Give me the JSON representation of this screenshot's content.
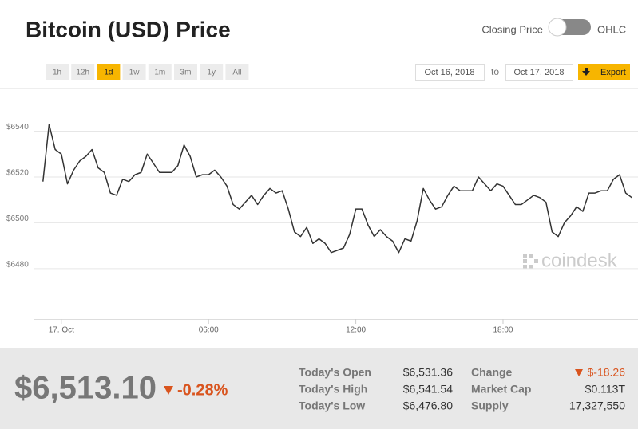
{
  "header": {
    "title": "Bitcoin (USD) Price",
    "toggle_left": "Closing Price",
    "toggle_right": "OHLC"
  },
  "controls": {
    "ranges": [
      "1h",
      "12h",
      "1d",
      "1w",
      "1m",
      "3m",
      "1y",
      "All"
    ],
    "selected_range": "1d",
    "date_from": "Oct 16, 2018",
    "to": "to",
    "date_to": "Oct 17, 2018",
    "export": "Export"
  },
  "chart_data": {
    "type": "line",
    "color": "#333333",
    "grid": true,
    "watermark": "coindesk",
    "x": [
      -0.75,
      -0.5,
      -0.25,
      0,
      0.25,
      0.5,
      0.75,
      1,
      1.25,
      1.5,
      1.75,
      2,
      2.25,
      2.5,
      2.75,
      3,
      3.25,
      3.5,
      3.75,
      4,
      4.25,
      4.5,
      4.75,
      5,
      5.25,
      5.5,
      5.75,
      6,
      6.25,
      6.5,
      6.75,
      7,
      7.25,
      7.5,
      7.75,
      8,
      8.25,
      8.5,
      8.75,
      9,
      9.25,
      9.5,
      9.75,
      10,
      10.25,
      10.5,
      10.75,
      11,
      11.25,
      11.5,
      11.75,
      12,
      12.25,
      12.5,
      12.75,
      13,
      13.25,
      13.5,
      13.75,
      14,
      14.25,
      14.5,
      14.75,
      15,
      15.25,
      15.5,
      15.75,
      16,
      16.25,
      16.5,
      16.75,
      17,
      17.25,
      17.5,
      17.75,
      18,
      18.25,
      18.5,
      18.75,
      19,
      19.25,
      19.5,
      19.75,
      20,
      20.25,
      20.5,
      20.75,
      21,
      21.25,
      21.5,
      21.75,
      22,
      22.25,
      22.5,
      22.75,
      23,
      23.25
    ],
    "values": [
      6518,
      6543,
      6532,
      6530,
      6517,
      6523,
      6527,
      6529,
      6532,
      6524,
      6522,
      6513,
      6512,
      6519,
      6518,
      6521,
      6522,
      6530,
      6526,
      6522,
      6522,
      6522,
      6525,
      6534,
      6529,
      6520,
      6521,
      6521,
      6523,
      6520,
      6516,
      6508,
      6506,
      6509,
      6512,
      6508,
      6512,
      6515,
      6513,
      6514,
      6506,
      6496,
      6494,
      6498,
      6491,
      6493,
      6491,
      6487,
      6488,
      6489,
      6495,
      6506,
      6506,
      6499,
      6494,
      6497,
      6494,
      6492,
      6487,
      6493,
      6492,
      6501,
      6515,
      6510,
      6506,
      6507,
      6512,
      6516,
      6514,
      6514,
      6514,
      6520,
      6517,
      6514,
      6517,
      6516,
      6512,
      6508,
      6508,
      6510,
      6512,
      6511,
      6509,
      6496,
      6494,
      6500,
      6503,
      6507,
      6505,
      6513,
      6513,
      6514,
      6514,
      6519,
      6521,
      6513,
      6511
    ],
    "xlim": [
      -2.5,
      23.5
    ],
    "xticks": [
      {
        "value": 0,
        "label": "17. Oct"
      },
      {
        "value": 6,
        "label": "06:00"
      },
      {
        "value": 12,
        "label": "12:00"
      },
      {
        "value": 18,
        "label": "18:00"
      }
    ],
    "ylim": [
      6458,
      6559
    ],
    "yticks": [
      {
        "value": 6480,
        "label": "$6480"
      },
      {
        "value": 6500,
        "label": "$6500"
      },
      {
        "value": 6520,
        "label": "$6520"
      },
      {
        "value": 6540,
        "label": "$6540"
      }
    ]
  },
  "summary": {
    "price": "$6,513.10",
    "change_percent": "-0.28%",
    "stats": [
      {
        "label": "Today's Open",
        "value": "$6,531.36"
      },
      {
        "label": "Today's High",
        "value": "$6,541.54"
      },
      {
        "label": "Today's Low",
        "value": "$6,476.80"
      },
      {
        "label": "Change",
        "value": "$-18.26"
      },
      {
        "label": "Market Cap",
        "value": "$0.113T"
      },
      {
        "label": "Supply",
        "value": "17,327,550"
      }
    ]
  }
}
